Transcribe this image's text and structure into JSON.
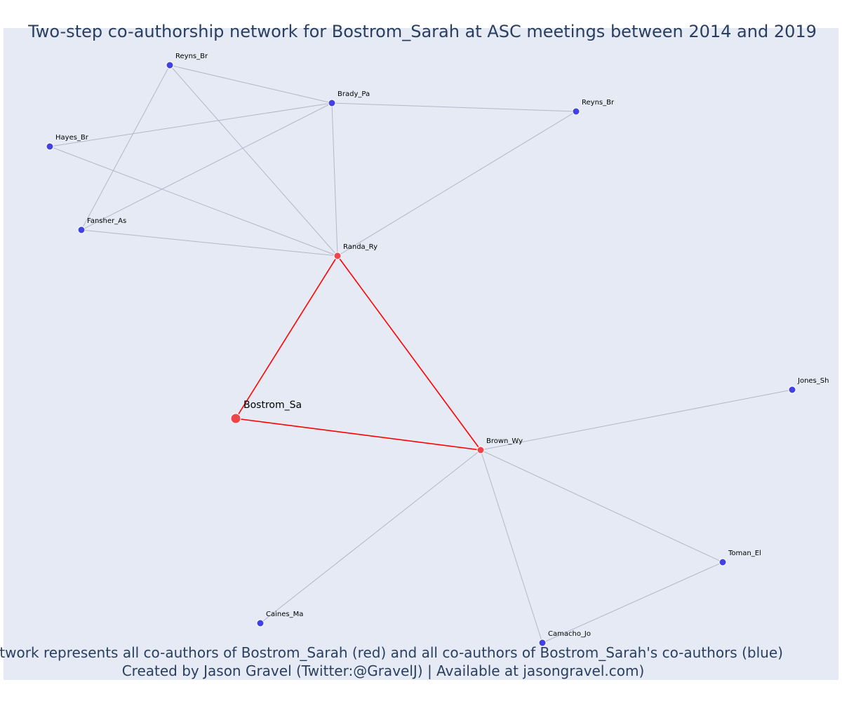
{
  "title": "Two-step co-authorship network for Bostrom_Sarah at ASC meetings between 2014 and 2019",
  "caption_line1": "Network represents all co-authors of Bostrom_Sarah (red) and all co-authors of Bostrom_Sarah's co-authors (blue)",
  "caption_line2": "Created by Jason Gravel (Twitter:@GravelJ) | Available at jasongravel.com)",
  "colors": {
    "background": "#E5EAF4",
    "title_text": "#2A3F5F",
    "ego_node": "#F0444A",
    "first_step_node": "#F0444A",
    "second_step_node": "#4141E4",
    "ego_edge": "#FF0000",
    "other_edge": "#B4B7C8"
  },
  "nodes": [
    {
      "id": "bostrom",
      "label": "Bostrom_Sa",
      "group": "ego"
    },
    {
      "id": "randa",
      "label": "Randa_Ry",
      "group": "first"
    },
    {
      "id": "brown",
      "label": "Brown_Wy",
      "group": "first"
    },
    {
      "id": "reyns1",
      "label": "Reyns_Br",
      "group": "second"
    },
    {
      "id": "brady",
      "label": "Brady_Pa",
      "group": "second"
    },
    {
      "id": "reyns2",
      "label": "Reyns_Br",
      "group": "second"
    },
    {
      "id": "hayes",
      "label": "Hayes_Br",
      "group": "second"
    },
    {
      "id": "fansher",
      "label": "Fansher_As",
      "group": "second"
    },
    {
      "id": "jones",
      "label": "Jones_Sh",
      "group": "second"
    },
    {
      "id": "toman",
      "label": "Toman_El",
      "group": "second"
    },
    {
      "id": "caines",
      "label": "Caines_Ma",
      "group": "second"
    },
    {
      "id": "camacho",
      "label": "Camacho_Jo",
      "group": "second"
    }
  ],
  "edges": [
    {
      "source": "bostrom",
      "target": "randa",
      "kind": "ego"
    },
    {
      "source": "bostrom",
      "target": "brown",
      "kind": "ego"
    },
    {
      "source": "randa",
      "target": "brown",
      "kind": "ego"
    },
    {
      "source": "reyns1",
      "target": "brady",
      "kind": "other"
    },
    {
      "source": "reyns1",
      "target": "fansher",
      "kind": "other"
    },
    {
      "source": "reyns1",
      "target": "randa",
      "kind": "other"
    },
    {
      "source": "brady",
      "target": "reyns2",
      "kind": "other"
    },
    {
      "source": "brady",
      "target": "hayes",
      "kind": "other"
    },
    {
      "source": "brady",
      "target": "fansher",
      "kind": "other"
    },
    {
      "source": "brady",
      "target": "randa",
      "kind": "other"
    },
    {
      "source": "hayes",
      "target": "randa",
      "kind": "other"
    },
    {
      "source": "fansher",
      "target": "randa",
      "kind": "other"
    },
    {
      "source": "reyns2",
      "target": "randa",
      "kind": "other"
    },
    {
      "source": "brown",
      "target": "jones",
      "kind": "other"
    },
    {
      "source": "brown",
      "target": "toman",
      "kind": "other"
    },
    {
      "source": "brown",
      "target": "caines",
      "kind": "other"
    },
    {
      "source": "brown",
      "target": "camacho",
      "kind": "other"
    },
    {
      "source": "toman",
      "target": "camacho",
      "kind": "other"
    }
  ]
}
